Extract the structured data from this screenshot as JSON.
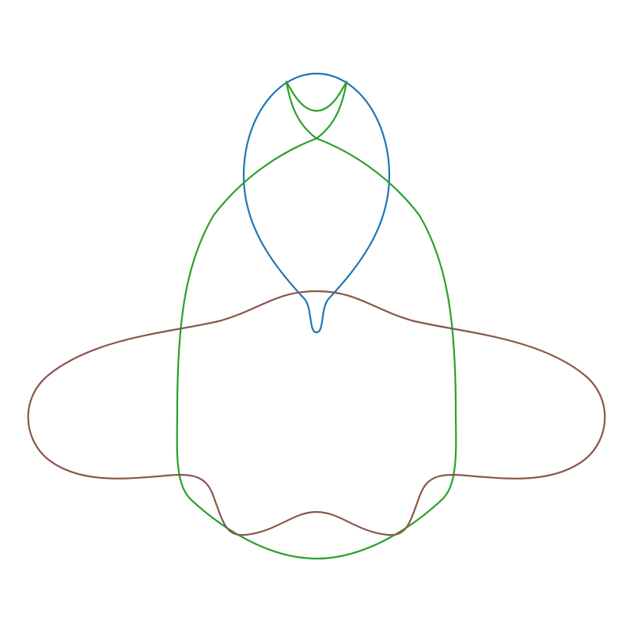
{
  "figure": {
    "background": "#ffffff",
    "curves": [
      {
        "id": "blue-curve",
        "color": "#1f77b4"
      },
      {
        "id": "green-curve",
        "color": "#2ca02c"
      },
      {
        "id": "brown-curve",
        "color": "#8c564b"
      }
    ]
  }
}
